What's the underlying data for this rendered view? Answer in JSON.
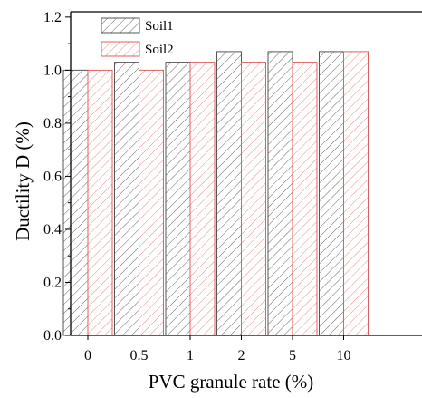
{
  "chart_data": {
    "type": "bar",
    "title": "",
    "xlabel": "PVC granule rate (%)",
    "ylabel": "Ductility D (%)",
    "categories": [
      "0",
      "0.5",
      "1",
      "2",
      "5",
      "10"
    ],
    "series": [
      {
        "name": "Soil1",
        "values": [
          1.0,
          1.03,
          1.03,
          1.07,
          1.07,
          1.07
        ],
        "color": "#555555"
      },
      {
        "name": "Soil2",
        "values": [
          1.0,
          1.0,
          1.03,
          1.03,
          1.03,
          1.07
        ],
        "color": "#e06060"
      }
    ],
    "ylim": [
      0,
      1.22
    ],
    "yticks": [
      "0.0",
      "0.2",
      "0.4",
      "0.6",
      "0.8",
      "1.0",
      "1.2"
    ],
    "fill_pattern": "diagonal-hatch",
    "legend_position": "top-left",
    "grid": false
  }
}
